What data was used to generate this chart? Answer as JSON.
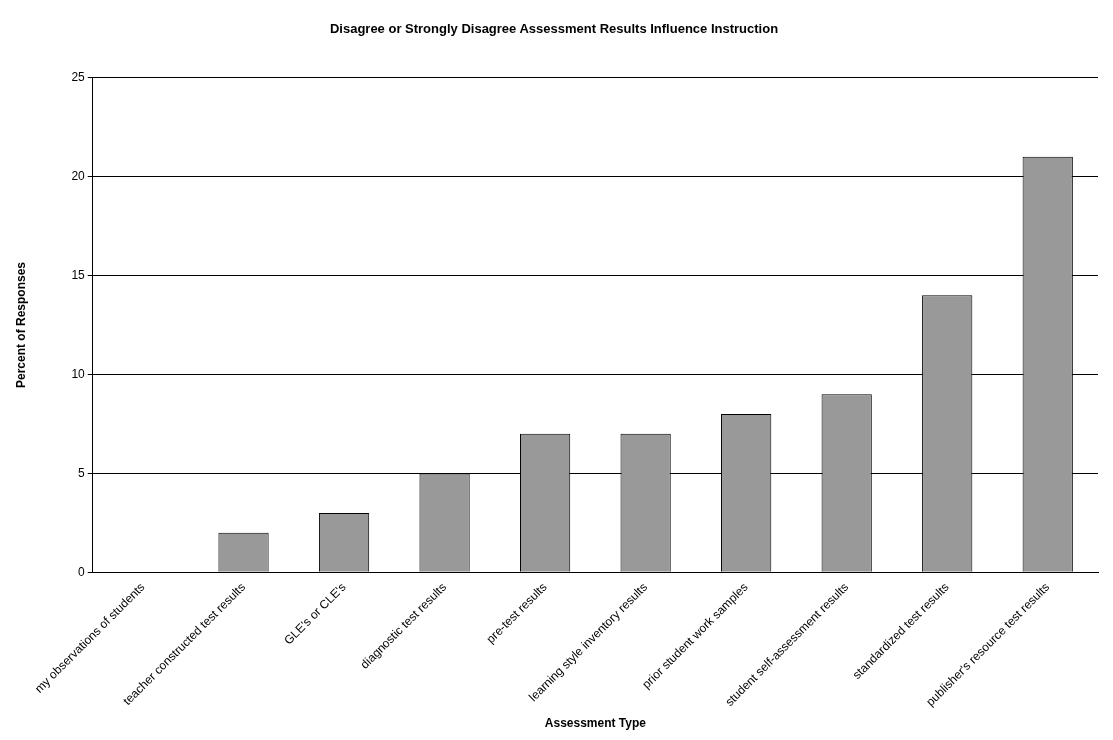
{
  "chart_data": {
    "type": "bar",
    "title": "Disagree or Strongly Disagree Assessment Results Influence Instruction",
    "xlabel": "Assessment Type",
    "ylabel": "Percent of Responses",
    "categories": [
      "my observations of students",
      "teacher constructed test results",
      "GLE's or CLE's",
      "diagnostic test results",
      "pre-test results",
      "learning style inventory results",
      "prior student work samples",
      "student self-assessment results",
      "standardized test results",
      "publisher's resource test results"
    ],
    "values": [
      0,
      2,
      3,
      5,
      7,
      7,
      8,
      9,
      14,
      21
    ],
    "color": "#999999",
    "ylim": [
      0,
      25
    ],
    "yticks": [
      0,
      5,
      10,
      15,
      20,
      25
    ],
    "grid": "y",
    "legend": false
  }
}
